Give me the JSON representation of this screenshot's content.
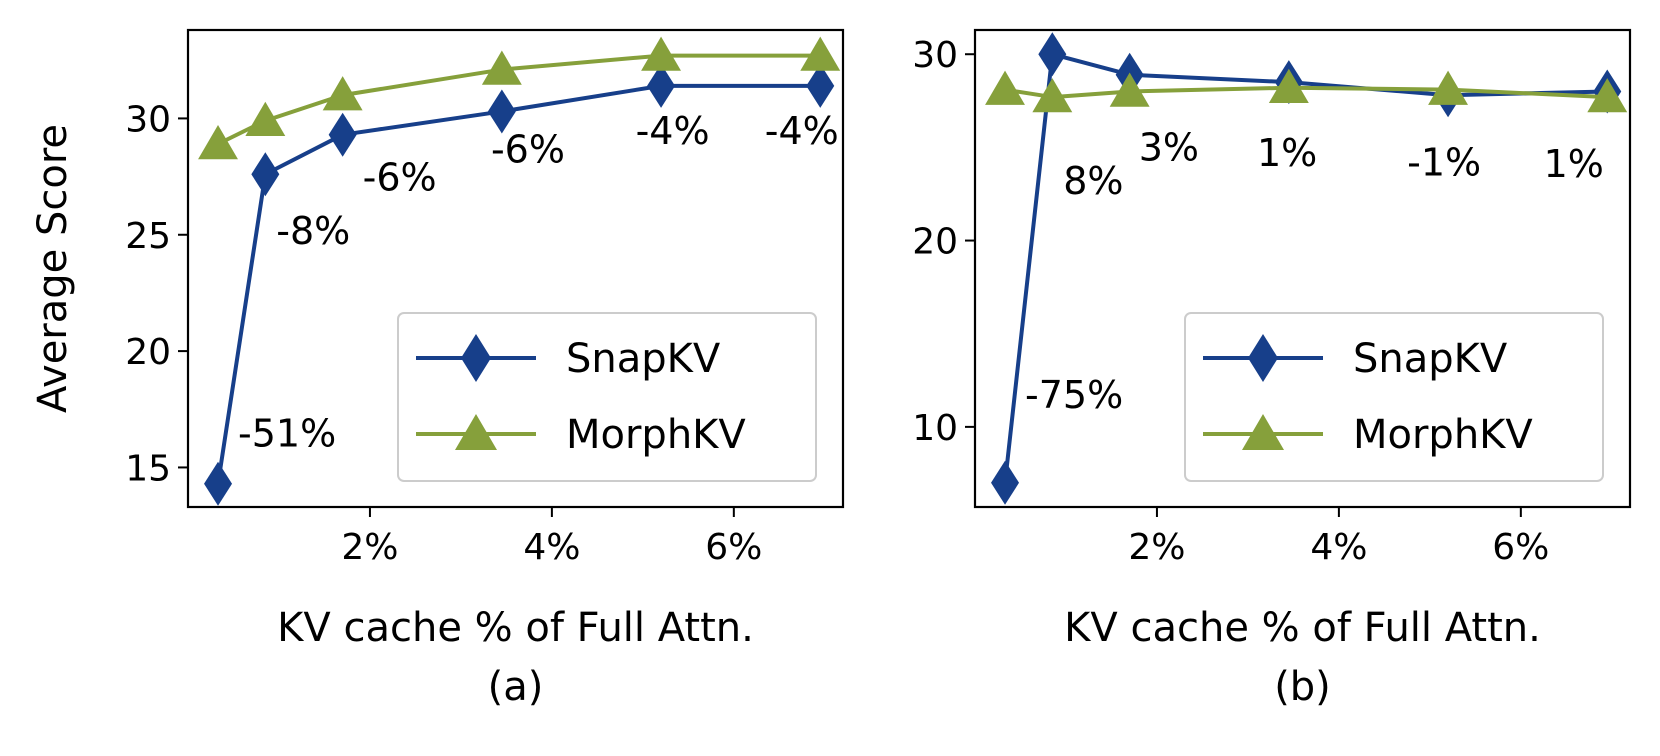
{
  "colors": {
    "snapkv": "#173f8a",
    "morphkv": "#86a03b",
    "axis": "#000000",
    "legend_border": "#cccccc"
  },
  "chart_data": [
    {
      "type": "line",
      "caption": "(a)",
      "xlabel": "KV cache % of Full Attn.",
      "ylabel": "Average Score",
      "xlim": [
        0.0,
        7.2
      ],
      "ylim": [
        13.3,
        33.8
      ],
      "xticks": [
        {
          "value": 2,
          "label": "2%"
        },
        {
          "value": 4,
          "label": "4%"
        },
        {
          "value": 6,
          "label": "6%"
        }
      ],
      "yticks": [
        {
          "value": 15,
          "label": "15"
        },
        {
          "value": 20,
          "label": "20"
        },
        {
          "value": 25,
          "label": "25"
        },
        {
          "value": 30,
          "label": "30"
        }
      ],
      "legend": {
        "position": "lower-right",
        "entries": [
          "SnapKV",
          "MorphKV"
        ]
      },
      "series": [
        {
          "name": "SnapKV",
          "marker": "diamond",
          "x": [
            0.33,
            0.85,
            1.7,
            3.45,
            5.2,
            6.95
          ],
          "y": [
            14.3,
            27.6,
            29.3,
            30.3,
            31.4,
            31.4
          ]
        },
        {
          "name": "MorphKV",
          "marker": "triangle",
          "x": [
            0.33,
            0.85,
            1.7,
            3.45,
            5.2,
            6.95
          ],
          "y": [
            28.9,
            29.9,
            31.0,
            32.1,
            32.7,
            32.7
          ]
        }
      ],
      "annotations": [
        {
          "text": "-51%",
          "x": 0.55,
          "y": 15.9
        },
        {
          "text": "-8%",
          "x": 0.97,
          "y": 24.6
        },
        {
          "text": "-6%",
          "x": 1.92,
          "y": 26.9
        },
        {
          "text": "-6%",
          "x": 3.33,
          "y": 28.1
        },
        {
          "text": "-4%",
          "x": 4.92,
          "y": 28.9
        },
        {
          "text": "-4%",
          "x": 6.34,
          "y": 28.9
        }
      ]
    },
    {
      "type": "line",
      "caption": "(b)",
      "xlabel": "KV cache % of Full Attn.",
      "ylabel": "",
      "xlim": [
        0.0,
        7.2
      ],
      "ylim": [
        5.7,
        31.3
      ],
      "xticks": [
        {
          "value": 2,
          "label": "2%"
        },
        {
          "value": 4,
          "label": "4%"
        },
        {
          "value": 6,
          "label": "6%"
        }
      ],
      "yticks": [
        {
          "value": 10,
          "label": "10"
        },
        {
          "value": 20,
          "label": "20"
        },
        {
          "value": 30,
          "label": "30"
        }
      ],
      "legend": {
        "position": "lower-right",
        "entries": [
          "SnapKV",
          "MorphKV"
        ]
      },
      "series": [
        {
          "name": "SnapKV",
          "marker": "diamond",
          "x": [
            0.33,
            0.85,
            1.7,
            3.45,
            5.2,
            6.95
          ],
          "y": [
            7.0,
            30.0,
            28.9,
            28.5,
            27.8,
            28.0
          ]
        },
        {
          "name": "MorphKV",
          "marker": "triangle",
          "x": [
            0.33,
            0.85,
            1.7,
            3.45,
            5.2,
            6.95
          ],
          "y": [
            28.1,
            27.7,
            28.0,
            28.2,
            28.1,
            27.7
          ]
        }
      ],
      "annotations": [
        {
          "text": "-75%",
          "x": 0.55,
          "y": 11.0
        },
        {
          "text": "8%",
          "x": 0.97,
          "y": 22.5
        },
        {
          "text": "3%",
          "x": 1.8,
          "y": 24.3
        },
        {
          "text": "1%",
          "x": 3.1,
          "y": 24.0
        },
        {
          "text": "-1%",
          "x": 4.75,
          "y": 23.5
        },
        {
          "text": "1%",
          "x": 6.25,
          "y": 23.4
        }
      ]
    }
  ]
}
